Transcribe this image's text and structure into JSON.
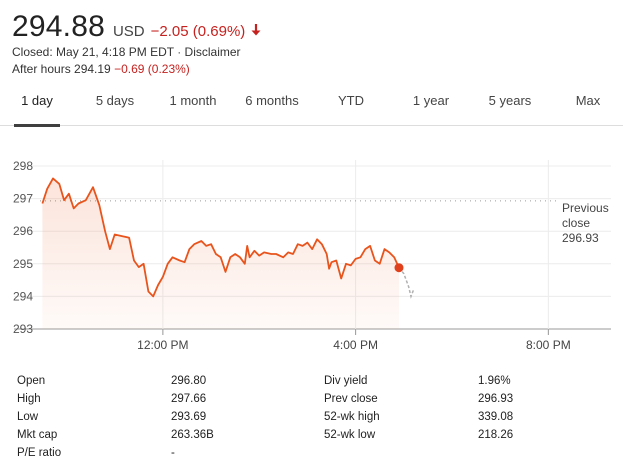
{
  "quote": {
    "price": "294.88",
    "currency": "USD",
    "change": "−2.05 (0.69%)",
    "closed_text": "Closed: May 21, 4:18 PM EDT",
    "separator": " · ",
    "disclaimer": "Disclaimer",
    "after_hours_label": "After hours 294.19",
    "after_hours_change": "−0.69 (0.23%)",
    "down_color": "#c5221f",
    "arrow_icon": "down-arrow-icon"
  },
  "tabs": [
    {
      "label": "1 day",
      "active": true
    },
    {
      "label": "5 days",
      "active": false
    },
    {
      "label": "1 month",
      "active": false
    },
    {
      "label": "6 months",
      "active": false
    },
    {
      "label": "YTD",
      "active": false
    },
    {
      "label": "1 year",
      "active": false
    },
    {
      "label": "5 years",
      "active": false
    },
    {
      "label": "Max",
      "active": false
    }
  ],
  "chart_data": {
    "type": "line",
    "y_ticks": [
      "298",
      "297",
      "296",
      "295",
      "294",
      "293"
    ],
    "x_ticks": [
      "12:00 PM",
      "4:00 PM",
      "8:00 PM"
    ],
    "ylim": [
      293,
      298
    ],
    "reference_line": {
      "label_line1": "Previous",
      "label_line2": "close",
      "value_text": "296.93",
      "value": 296.93
    },
    "series_color": "#e8541c",
    "after_hours_color": "#b0b0b0",
    "series": [
      {
        "values": [
          [
            9.5,
            296.85
          ],
          [
            9.6,
            297.3
          ],
          [
            9.72,
            297.62
          ],
          [
            9.85,
            297.45
          ],
          [
            9.95,
            296.95
          ],
          [
            10.05,
            297.15
          ],
          [
            10.15,
            296.7
          ],
          [
            10.25,
            296.85
          ],
          [
            10.4,
            296.95
          ],
          [
            10.55,
            297.35
          ],
          [
            10.68,
            296.8
          ],
          [
            10.8,
            296.0
          ],
          [
            10.9,
            295.45
          ],
          [
            11.0,
            295.9
          ],
          [
            11.15,
            295.85
          ],
          [
            11.3,
            295.8
          ],
          [
            11.4,
            295.1
          ],
          [
            11.5,
            294.9
          ],
          [
            11.6,
            295.0
          ],
          [
            11.7,
            294.15
          ],
          [
            11.8,
            294.0
          ],
          [
            11.9,
            294.35
          ],
          [
            12.0,
            294.6
          ],
          [
            12.1,
            295.0
          ],
          [
            12.2,
            295.2
          ],
          [
            12.35,
            295.1
          ],
          [
            12.45,
            295.05
          ],
          [
            12.55,
            295.45
          ],
          [
            12.65,
            295.6
          ],
          [
            12.8,
            295.7
          ],
          [
            12.9,
            295.55
          ],
          [
            13.0,
            295.6
          ],
          [
            13.1,
            295.3
          ],
          [
            13.2,
            295.2
          ],
          [
            13.3,
            294.75
          ],
          [
            13.4,
            295.2
          ],
          [
            13.5,
            295.3
          ],
          [
            13.6,
            295.2
          ],
          [
            13.7,
            295.0
          ],
          [
            13.75,
            295.55
          ],
          [
            13.8,
            295.2
          ],
          [
            13.9,
            295.4
          ],
          [
            14.0,
            295.25
          ],
          [
            14.1,
            295.35
          ],
          [
            14.25,
            295.3
          ],
          [
            14.35,
            295.3
          ],
          [
            14.5,
            295.2
          ],
          [
            14.6,
            295.35
          ],
          [
            14.7,
            295.3
          ],
          [
            14.8,
            295.6
          ],
          [
            14.9,
            295.55
          ],
          [
            15.0,
            295.65
          ],
          [
            15.1,
            295.45
          ],
          [
            15.2,
            295.75
          ],
          [
            15.3,
            295.6
          ],
          [
            15.4,
            295.3
          ],
          [
            15.45,
            294.85
          ],
          [
            15.5,
            295.05
          ],
          [
            15.6,
            295.1
          ],
          [
            15.7,
            294.55
          ],
          [
            15.8,
            295.0
          ],
          [
            15.9,
            294.95
          ],
          [
            16.0,
            295.15
          ],
          [
            16.1,
            295.2
          ],
          [
            16.2,
            295.45
          ],
          [
            16.3,
            295.55
          ],
          [
            16.4,
            295.1
          ],
          [
            16.5,
            295.0
          ],
          [
            16.6,
            295.45
          ],
          [
            16.7,
            295.35
          ],
          [
            16.8,
            295.2
          ],
          [
            16.9,
            294.88
          ]
        ]
      }
    ],
    "after_hours_series": [
      [
        16.9,
        294.88
      ],
      [
        17.0,
        294.7
      ],
      [
        17.1,
        294.3
      ],
      [
        17.15,
        294.0
      ],
      [
        17.2,
        294.19
      ]
    ]
  },
  "stats": [
    [
      "Open",
      "296.80",
      "Div yield",
      "1.96%"
    ],
    [
      "High",
      "297.66",
      "Prev close",
      "296.93"
    ],
    [
      "Low",
      "293.69",
      "52-wk high",
      "339.08"
    ],
    [
      "Mkt cap",
      "263.36B",
      "52-wk low",
      "218.26"
    ],
    [
      "P/E ratio",
      "-",
      "",
      ""
    ]
  ]
}
